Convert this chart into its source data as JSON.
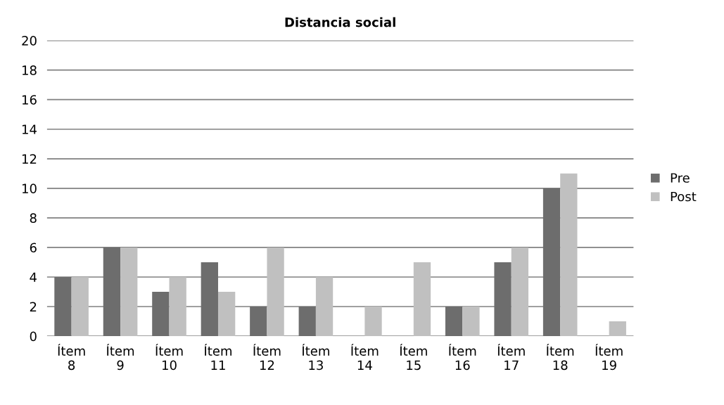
{
  "chart_data": {
    "type": "bar",
    "title": "Distancia social",
    "categories": [
      "Ítem\n8",
      "Ítem\n9",
      "Ítem\n10",
      "Ítem\n11",
      "Ítem\n12",
      "Ítem\n13",
      "Ítem\n14",
      "Ítem\n15",
      "Ítem\n16",
      "Ítem\n17",
      "Ítem\n18",
      "Ítem\n19"
    ],
    "series": [
      {
        "name": "Pre",
        "color": "#6d6d6d",
        "values": [
          4,
          6,
          3,
          5,
          2,
          2,
          0,
          0,
          2,
          5,
          10,
          0
        ]
      },
      {
        "name": "Post",
        "color": "#c0c0c0",
        "values": [
          4,
          6,
          4,
          3,
          6,
          4,
          2,
          5,
          2,
          6,
          11,
          1
        ]
      }
    ],
    "ylim": [
      0,
      20
    ],
    "yticks": [
      0,
      2,
      4,
      6,
      8,
      10,
      12,
      14,
      16,
      18,
      20
    ],
    "grid": "y",
    "legend": "right"
  }
}
